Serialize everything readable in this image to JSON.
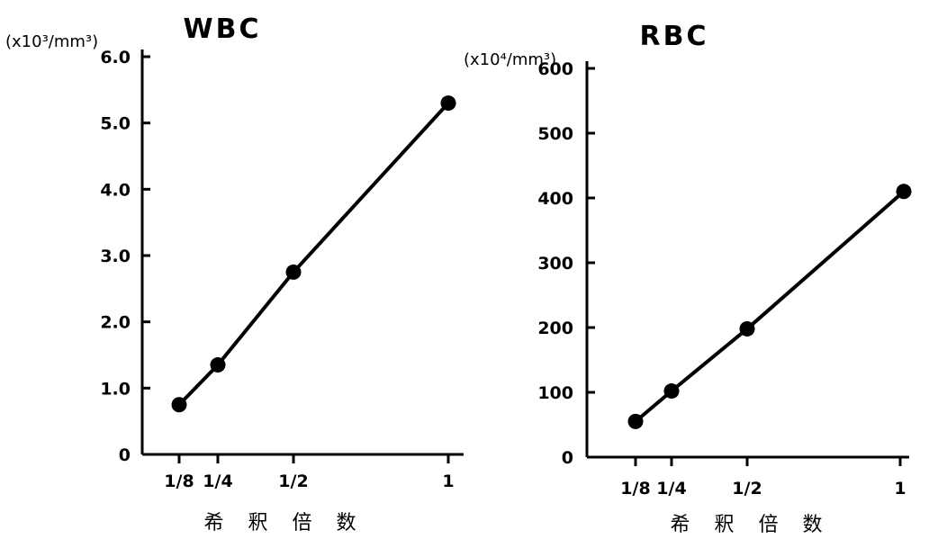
{
  "chart_data": [
    {
      "type": "line",
      "title": "WBC",
      "ylabel": "(x10³/mm³)",
      "xlabel": "希 釈 倍 数",
      "categories": [
        "1/8",
        "1/4",
        "1/2",
        "1"
      ],
      "x": [
        0.125,
        0.25,
        0.5,
        1
      ],
      "ylim": [
        0,
        6.0
      ],
      "yticks": [
        "0",
        "1.0",
        "2.0",
        "3.0",
        "4.0",
        "5.0",
        "6.0"
      ],
      "series": [
        {
          "values": [
            0.75,
            1.35,
            2.75,
            5.3
          ]
        }
      ],
      "grid": false
    },
    {
      "type": "line",
      "title": "RBC",
      "ylabel": "(x10⁴/mm³)",
      "xlabel": "希 釈 倍 数",
      "categories": [
        "1/8",
        "1/4",
        "1/2",
        "1"
      ],
      "x": [
        0.125,
        0.25,
        0.5,
        1
      ],
      "ylim": [
        0,
        600
      ],
      "yticks": [
        "0",
        "100",
        "200",
        "300",
        "400",
        "500",
        "600"
      ],
      "series": [
        {
          "values": [
            55,
            102,
            198,
            410
          ]
        }
      ],
      "grid": false
    }
  ]
}
